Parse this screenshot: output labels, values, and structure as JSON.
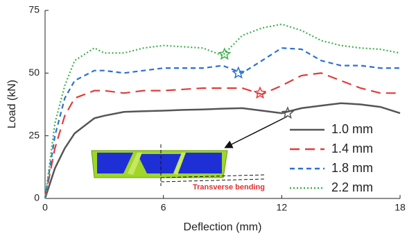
{
  "chart_data": {
    "type": "line",
    "xlabel": "Deflection (mm)",
    "ylabel": "Load (kN)",
    "x": [
      0,
      0.5,
      1,
      1.5,
      2.5,
      3,
      4,
      5,
      6,
      7,
      8,
      9,
      10,
      11,
      12,
      13,
      14,
      15,
      16,
      17,
      18
    ],
    "xlim": [
      0,
      18
    ],
    "xticks": [
      0,
      6,
      12,
      18
    ],
    "ylim": [
      0,
      75
    ],
    "yticks": [
      0,
      25,
      50,
      75
    ],
    "grid": false,
    "legend": "lower right",
    "annotation": "Transverse bending",
    "series": [
      {
        "name": "1.0 mm",
        "color": "#555555",
        "style": "solid",
        "values": [
          0,
          12,
          20,
          26,
          32,
          33,
          34.5,
          34.8,
          35,
          35.3,
          35.5,
          35.8,
          36,
          35,
          34,
          36,
          37,
          38,
          37.5,
          36.5,
          34
        ],
        "star": {
          "x": 12.3,
          "y": 34
        }
      },
      {
        "name": "1.4 mm",
        "color": "#e03c3c",
        "style": "long-dash",
        "values": [
          0,
          20,
          33,
          40,
          43,
          43,
          42,
          43,
          43,
          43.5,
          44,
          44,
          44,
          41.5,
          45,
          49,
          50,
          47,
          44,
          42,
          42
        ],
        "star": {
          "x": 10.9,
          "y": 42
        }
      },
      {
        "name": "1.8 mm",
        "color": "#2b6fd6",
        "style": "dash",
        "values": [
          0,
          25,
          40,
          47,
          51,
          51,
          50,
          51,
          52,
          52,
          52,
          53,
          50,
          55,
          60,
          59.5,
          55,
          53,
          53,
          52,
          52
        ],
        "star": {
          "x": 9.8,
          "y": 50
        }
      },
      {
        "name": "2.2 mm",
        "color": "#3cb04a",
        "style": "dot",
        "values": [
          0,
          30,
          45,
          55,
          60,
          58,
          58,
          60,
          61,
          60.5,
          60,
          57,
          65,
          68,
          69.5,
          67,
          63,
          61,
          60,
          59.5,
          58
        ],
        "star": {
          "x": 9.1,
          "y": 57.5
        }
      }
    ]
  }
}
